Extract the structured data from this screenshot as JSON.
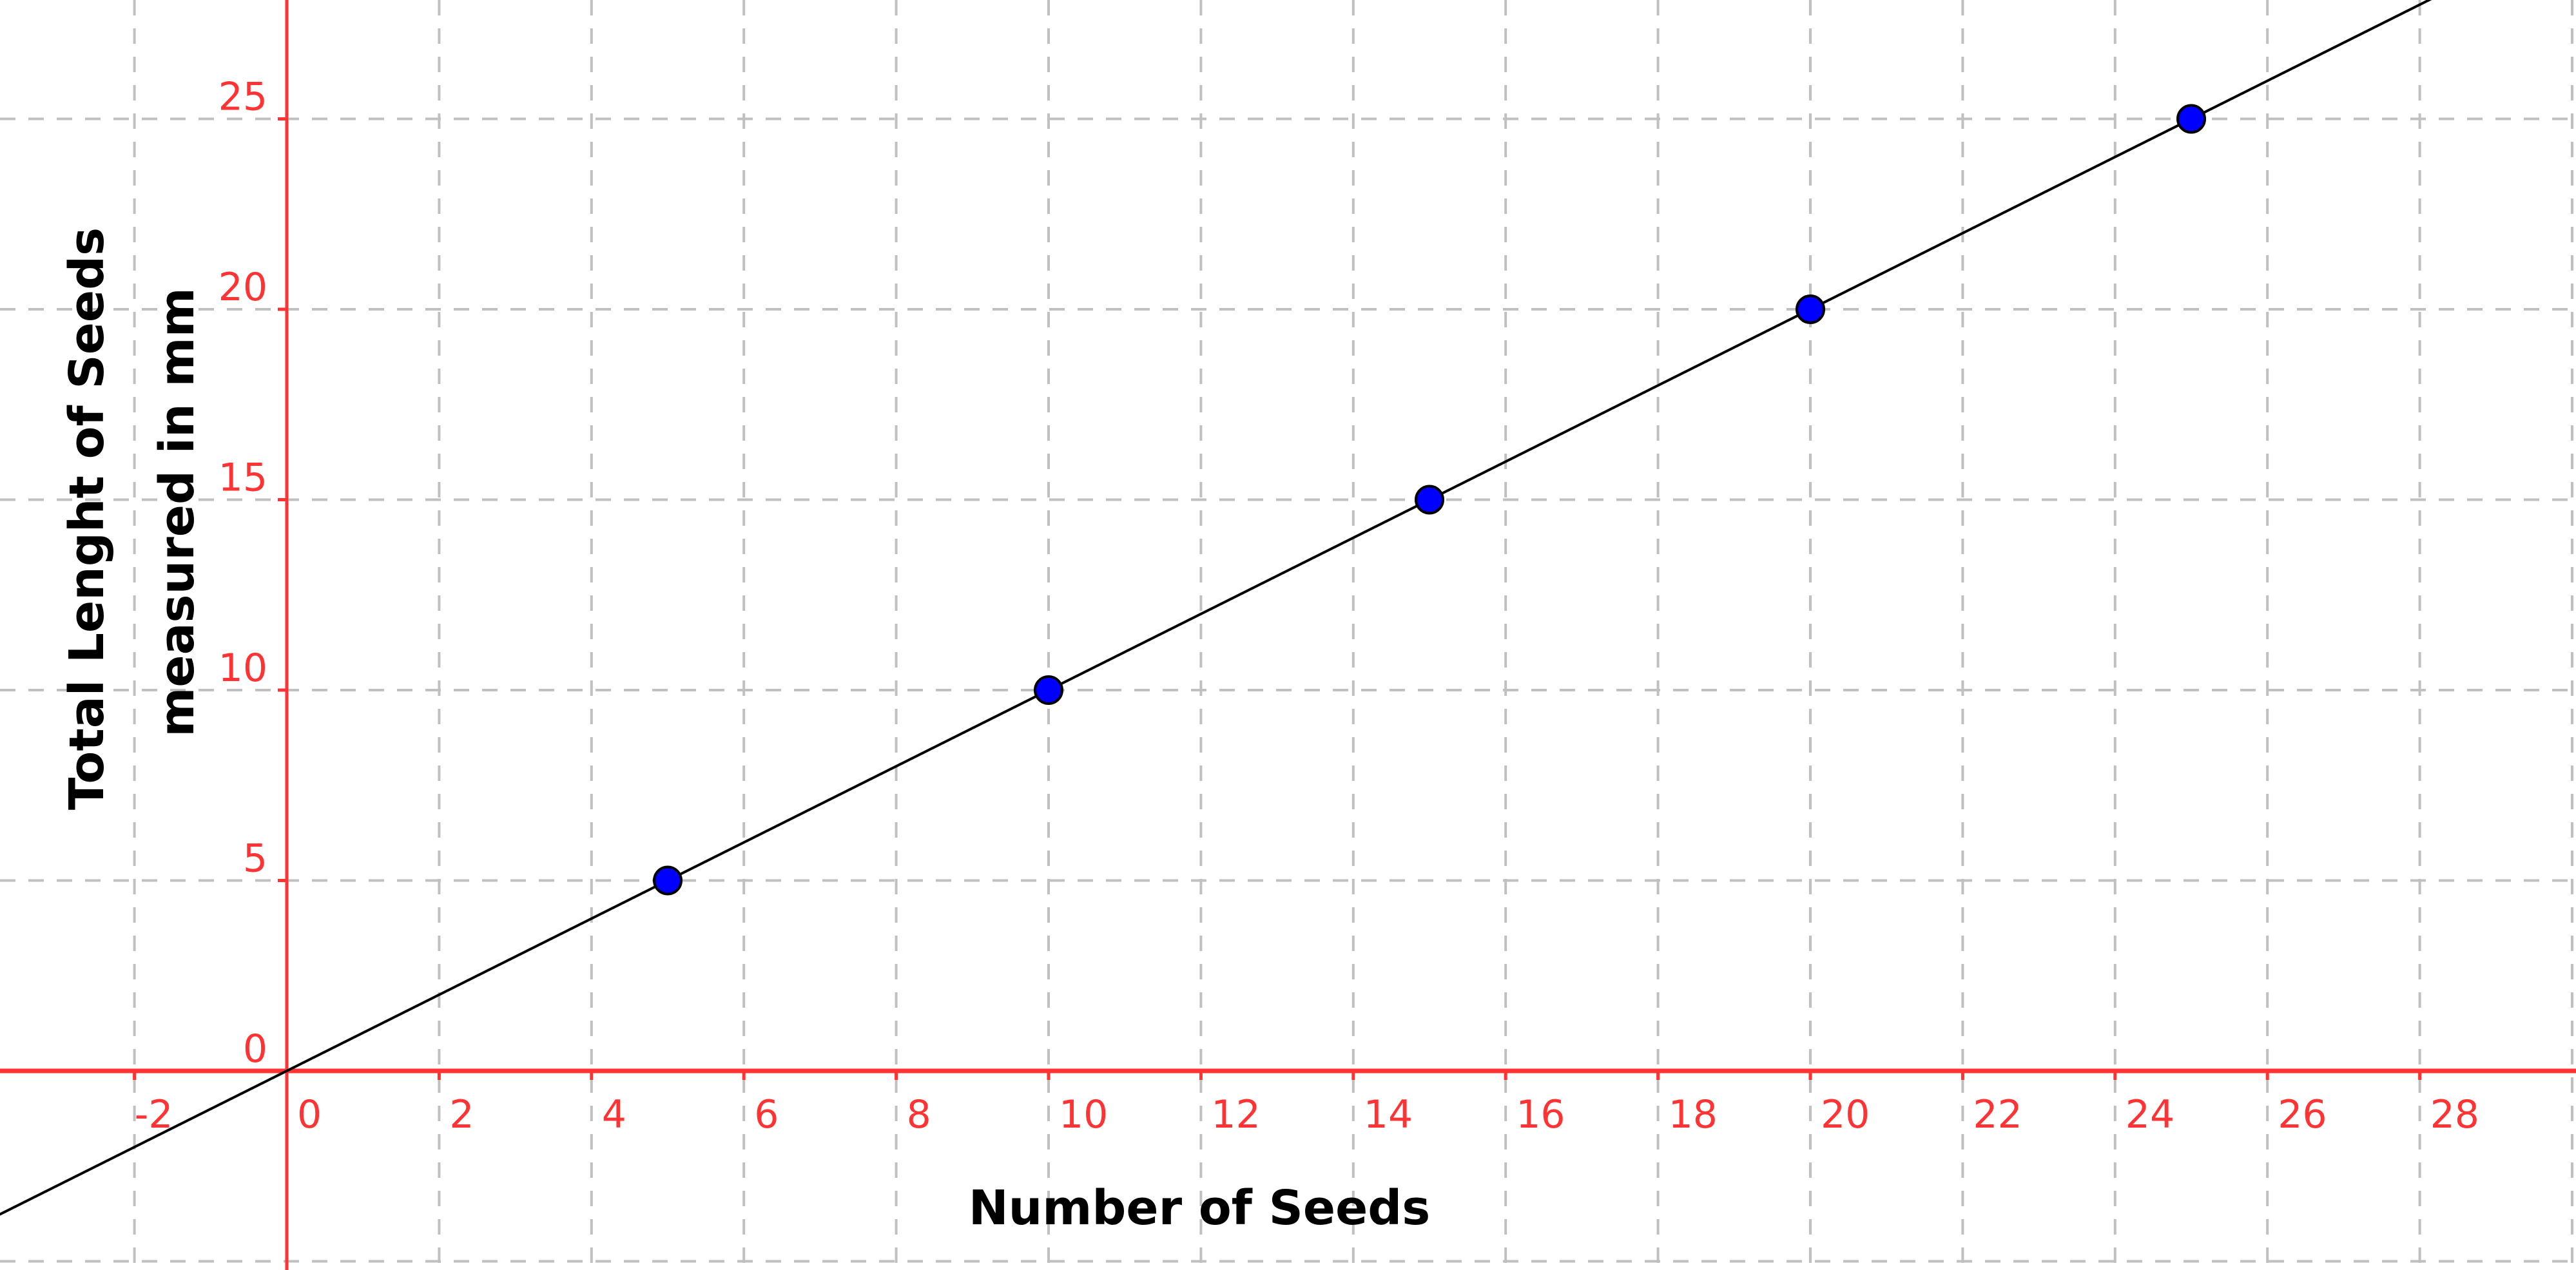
{
  "chart_data": {
    "type": "scatter",
    "xlabel": "Number of Seeds",
    "ylabel": [
      "Total Lenght of Seeds",
      "measured in mm"
    ],
    "xlim": [
      -3.77,
      30
    ],
    "ylim": [
      -5.2,
      28.1
    ],
    "x_ticks": [
      -2,
      0,
      2,
      4,
      6,
      8,
      10,
      12,
      14,
      16,
      18,
      20,
      22,
      24,
      26,
      28
    ],
    "y_ticks": [
      0,
      5,
      10,
      15,
      20,
      25
    ],
    "grid": true,
    "points": [
      {
        "x": 5,
        "y": 5
      },
      {
        "x": 10,
        "y": 10
      },
      {
        "x": 15,
        "y": 15
      },
      {
        "x": 20,
        "y": 20
      },
      {
        "x": 25,
        "y": 25
      }
    ],
    "fit_line": {
      "slope": 1,
      "intercept": 0
    },
    "colors": {
      "axes": "#ff3333",
      "points": "#0000ff",
      "line": "#000000",
      "grid": "#c0c0c0"
    }
  }
}
